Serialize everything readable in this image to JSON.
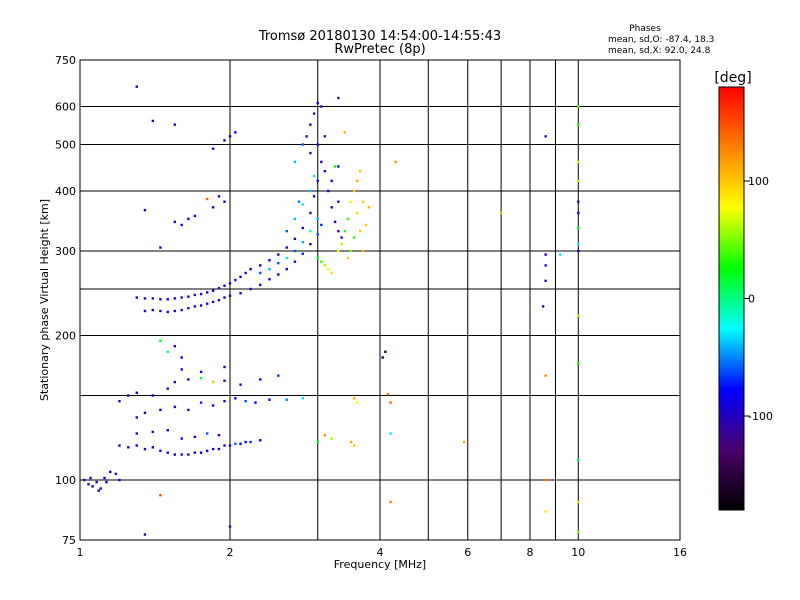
{
  "chart_data": {
    "type": "scatter",
    "title": "Tromsø 20180130 14:54:00-14:55:43",
    "subtitle": "RwPretec (8p)",
    "xlabel": "Frequency [MHz]",
    "ylabel": "Stationary phase Virtual Height [km]",
    "x_scale": "log",
    "y_scale": "log",
    "xlim": [
      1,
      16
    ],
    "ylim": [
      75,
      750
    ],
    "x_ticks": [
      1,
      2,
      4,
      6,
      8,
      10,
      16
    ],
    "y_ticks": [
      75,
      100,
      200,
      300,
      400,
      500,
      600,
      750
    ],
    "x_ticks_unlabeled": [
      3,
      5,
      7,
      9
    ],
    "y_ticks_unlabeled": [
      150,
      250
    ],
    "grid": true,
    "phase_stats": {
      "heading": "Phases",
      "line_o": "mean, sd,O:  -87.4, 18.3",
      "line_x": "mean, sd,X:  92.0, 24.8"
    },
    "colorbar": {
      "label": "[deg]",
      "min": -180,
      "max": 180,
      "ticks": [
        100,
        0,
        -100
      ],
      "colormap": "rainbow",
      "colors": [
        "#000000",
        "#4b006e",
        "#0000ff",
        "#00ffff",
        "#00ff00",
        "#ffff00",
        "#ff8000",
        "#ff0000"
      ]
    },
    "series": [
      {
        "points": [
          [
            1.02,
            100,
            -100
          ],
          [
            1.04,
            98,
            -100
          ],
          [
            1.06,
            97,
            -90
          ],
          [
            1.08,
            99,
            -100
          ],
          [
            1.1,
            96,
            -100
          ],
          [
            1.12,
            101,
            -95
          ],
          [
            1.15,
            104,
            -100
          ],
          [
            1.18,
            103,
            -100
          ],
          [
            1.2,
            100,
            -90
          ],
          [
            1.05,
            101,
            -100
          ],
          [
            1.09,
            95,
            -100
          ],
          [
            1.13,
            99,
            -80
          ],
          [
            1.2,
            118,
            -100
          ],
          [
            1.25,
            117,
            -100
          ],
          [
            1.3,
            118,
            -95
          ],
          [
            1.35,
            116,
            -100
          ],
          [
            1.4,
            117,
            -100
          ],
          [
            1.45,
            115,
            -100
          ],
          [
            1.5,
            114,
            -100
          ],
          [
            1.55,
            113,
            -100
          ],
          [
            1.6,
            113,
            -95
          ],
          [
            1.65,
            113,
            -100
          ],
          [
            1.7,
            114,
            -100
          ],
          [
            1.75,
            114,
            -100
          ],
          [
            1.8,
            115,
            -100
          ],
          [
            1.85,
            116,
            -90
          ],
          [
            1.9,
            116,
            -100
          ],
          [
            1.95,
            118,
            -90
          ],
          [
            2.0,
            118,
            -100
          ],
          [
            2.05,
            119,
            -60
          ],
          [
            2.1,
            119,
            -100
          ],
          [
            2.15,
            120,
            -90
          ],
          [
            2.2,
            120,
            -70
          ],
          [
            2.3,
            121,
            -80
          ],
          [
            1.3,
            125,
            -100
          ],
          [
            1.4,
            126,
            -100
          ],
          [
            1.5,
            127,
            -90
          ],
          [
            1.6,
            122,
            -100
          ],
          [
            1.7,
            123,
            -100
          ],
          [
            1.8,
            125,
            -60
          ],
          [
            1.9,
            124,
            -100
          ],
          [
            1.3,
            135,
            -100
          ],
          [
            1.35,
            138,
            -100
          ],
          [
            1.45,
            140,
            -100
          ],
          [
            1.55,
            142,
            -90
          ],
          [
            1.65,
            140,
            -100
          ],
          [
            1.75,
            145,
            -70
          ],
          [
            1.85,
            143,
            -100
          ],
          [
            1.95,
            146,
            -100
          ],
          [
            2.05,
            148,
            -90
          ],
          [
            2.15,
            146,
            -60
          ],
          [
            2.25,
            145,
            -80
          ],
          [
            2.4,
            147,
            -100
          ],
          [
            2.6,
            147,
            -50
          ],
          [
            2.8,
            148,
            -30
          ],
          [
            1.55,
            160,
            -100
          ],
          [
            1.65,
            162,
            -90
          ],
          [
            1.75,
            163,
            10
          ],
          [
            1.85,
            160,
            100
          ],
          [
            1.95,
            161,
            -100
          ],
          [
            2.1,
            158,
            -100
          ],
          [
            2.3,
            162,
            -90
          ],
          [
            2.5,
            165,
            -70
          ],
          [
            1.6,
            170,
            -100
          ],
          [
            1.75,
            168,
            -100
          ],
          [
            1.95,
            172,
            -100
          ],
          [
            1.2,
            146,
            -100
          ],
          [
            1.25,
            150,
            -100
          ],
          [
            1.3,
            152,
            -100
          ],
          [
            1.4,
            150,
            -90
          ],
          [
            1.5,
            155,
            -100
          ],
          [
            1.5,
            185,
            -10
          ],
          [
            1.45,
            195,
            20
          ],
          [
            1.55,
            190,
            -100
          ],
          [
            1.6,
            180,
            -100
          ],
          [
            1.3,
            240,
            -100
          ],
          [
            1.35,
            239,
            -100
          ],
          [
            1.4,
            239,
            -100
          ],
          [
            1.45,
            238,
            -100
          ],
          [
            1.5,
            238,
            -100
          ],
          [
            1.55,
            239,
            -100
          ],
          [
            1.6,
            240,
            -100
          ],
          [
            1.65,
            241,
            -100
          ],
          [
            1.7,
            243,
            -100
          ],
          [
            1.75,
            244,
            -100
          ],
          [
            1.8,
            246,
            -100
          ],
          [
            1.85,
            248,
            -100
          ],
          [
            1.9,
            251,
            -100
          ],
          [
            1.95,
            254,
            -100
          ],
          [
            2.0,
            257,
            -100
          ],
          [
            2.05,
            261,
            -100
          ],
          [
            2.1,
            265,
            -100
          ],
          [
            2.15,
            270,
            -100
          ],
          [
            2.2,
            275,
            -95
          ],
          [
            2.3,
            280,
            -100
          ],
          [
            2.4,
            287,
            -100
          ],
          [
            2.5,
            295,
            -100
          ],
          [
            2.6,
            305,
            -90
          ],
          [
            2.7,
            318,
            -100
          ],
          [
            2.8,
            335,
            -100
          ],
          [
            2.9,
            360,
            -100
          ],
          [
            2.95,
            390,
            -95
          ],
          [
            3.0,
            420,
            -100
          ],
          [
            1.35,
            225,
            -100
          ],
          [
            1.4,
            226,
            -100
          ],
          [
            1.45,
            225,
            -100
          ],
          [
            1.5,
            224,
            -100
          ],
          [
            1.55,
            225,
            -100
          ],
          [
            1.6,
            226,
            -100
          ],
          [
            1.65,
            228,
            -100
          ],
          [
            1.7,
            230,
            -100
          ],
          [
            1.75,
            231,
            -100
          ],
          [
            1.8,
            233,
            -100
          ],
          [
            1.85,
            235,
            -100
          ],
          [
            1.9,
            237,
            -100
          ],
          [
            1.95,
            240,
            -100
          ],
          [
            2.0,
            242,
            -100
          ],
          [
            2.1,
            245,
            -100
          ],
          [
            2.2,
            250,
            -100
          ],
          [
            2.3,
            255,
            -100
          ],
          [
            2.4,
            262,
            -100
          ],
          [
            2.5,
            268,
            -90
          ],
          [
            2.6,
            275,
            -100
          ],
          [
            2.7,
            285,
            -90
          ],
          [
            2.8,
            296,
            -70
          ],
          [
            2.9,
            310,
            -100
          ],
          [
            3.0,
            325,
            -60
          ],
          [
            3.05,
            340,
            -70
          ],
          [
            2.3,
            270,
            -60
          ],
          [
            2.4,
            275,
            -40
          ],
          [
            2.5,
            283,
            -60
          ],
          [
            2.6,
            290,
            -30
          ],
          [
            2.7,
            300,
            -60
          ],
          [
            2.8,
            313,
            -40
          ],
          [
            2.9,
            330,
            -20
          ],
          [
            3.0,
            350,
            -40
          ],
          [
            2.6,
            330,
            -60
          ],
          [
            2.7,
            350,
            -40
          ],
          [
            2.8,
            375,
            -30
          ],
          [
            2.9,
            400,
            -40
          ],
          [
            2.95,
            430,
            -30
          ],
          [
            2.7,
            460,
            -40
          ],
          [
            2.8,
            500,
            -60
          ],
          [
            2.75,
            380,
            -50
          ],
          [
            2.85,
            520,
            -100
          ],
          [
            2.9,
            550,
            -100
          ],
          [
            2.95,
            580,
            -100
          ],
          [
            3.0,
            610,
            -100
          ],
          [
            3.05,
            600,
            -100
          ],
          [
            2.9,
            480,
            -100
          ],
          [
            3.0,
            500,
            -90
          ],
          [
            3.05,
            460,
            -100
          ],
          [
            3.1,
            440,
            -100
          ],
          [
            3.15,
            400,
            -100
          ],
          [
            3.2,
            370,
            -100
          ],
          [
            3.25,
            345,
            -100
          ],
          [
            3.3,
            330,
            -100
          ],
          [
            3.35,
            320,
            -100
          ],
          [
            3.2,
            420,
            -100
          ],
          [
            3.3,
            380,
            -100
          ],
          [
            3.1,
            520,
            -100
          ],
          [
            3.3,
            450,
            -100
          ],
          [
            3.0,
            290,
            20
          ],
          [
            3.05,
            285,
            40
          ],
          [
            3.1,
            280,
            60
          ],
          [
            3.15,
            275,
            80
          ],
          [
            3.2,
            270,
            90
          ],
          [
            3.3,
            300,
            70
          ],
          [
            3.35,
            310,
            60
          ],
          [
            3.4,
            330,
            30
          ],
          [
            3.45,
            350,
            40
          ],
          [
            3.5,
            380,
            80
          ],
          [
            3.55,
            400,
            100
          ],
          [
            3.6,
            420,
            110
          ],
          [
            3.65,
            440,
            100
          ],
          [
            3.6,
            360,
            90
          ],
          [
            3.65,
            330,
            100
          ],
          [
            3.7,
            300,
            110
          ],
          [
            3.75,
            340,
            100
          ],
          [
            3.7,
            380,
            100
          ],
          [
            3.8,
            370,
            110
          ],
          [
            3.5,
            300,
            50
          ],
          [
            3.55,
            320,
            30
          ],
          [
            3.45,
            290,
            100
          ],
          [
            3.55,
            148,
            110
          ],
          [
            3.6,
            145,
            80
          ],
          [
            3.5,
            120,
            110
          ],
          [
            3.55,
            118,
            100
          ],
          [
            3.2,
            122,
            60
          ],
          [
            3.1,
            124,
            120
          ],
          [
            3.0,
            120,
            20
          ],
          [
            4.15,
            151,
            130
          ],
          [
            4.2,
            145,
            140
          ],
          [
            4.1,
            185,
            -150
          ],
          [
            4.05,
            180,
            -150
          ],
          [
            4.2,
            90,
            130
          ],
          [
            4.2,
            125,
            -30
          ],
          [
            4.3,
            460,
            120
          ],
          [
            3.3,
            625,
            -130
          ],
          [
            3.4,
            530,
            110
          ],
          [
            3.25,
            450,
            30
          ],
          [
            1.4,
            560,
            -100
          ],
          [
            1.55,
            550,
            -100
          ],
          [
            1.3,
            660,
            -100
          ],
          [
            1.65,
            350,
            -100
          ],
          [
            1.6,
            340,
            -100
          ],
          [
            1.7,
            355,
            -100
          ],
          [
            1.55,
            345,
            -100
          ],
          [
            1.8,
            385,
            140
          ],
          [
            1.85,
            370,
            -100
          ],
          [
            1.9,
            390,
            -110
          ],
          [
            1.95,
            380,
            -100
          ],
          [
            1.85,
            490,
            -110
          ],
          [
            1.95,
            510,
            -110
          ],
          [
            2.0,
            520,
            -100
          ],
          [
            2.05,
            530,
            -80
          ],
          [
            1.45,
            305,
            -100
          ],
          [
            1.35,
            365,
            -100
          ],
          [
            8.6,
            260,
            -100
          ],
          [
            8.6,
            280,
            -100
          ],
          [
            8.6,
            295,
            -100
          ],
          [
            8.5,
            230,
            -110
          ],
          [
            8.6,
            520,
            -110
          ],
          [
            8.6,
            165,
            120
          ],
          [
            8.6,
            100,
            130
          ],
          [
            8.6,
            86,
            90
          ],
          [
            10.0,
            380,
            -120
          ],
          [
            10.0,
            360,
            -80
          ],
          [
            10.0,
            335,
            20
          ],
          [
            10.0,
            310,
            -20
          ],
          [
            10.0,
            300,
            -100
          ],
          [
            10.0,
            420,
            60
          ],
          [
            10.0,
            460,
            70
          ],
          [
            10.0,
            550,
            30
          ],
          [
            10.0,
            600,
            40
          ],
          [
            10.0,
            220,
            60
          ],
          [
            10.0,
            175,
            30
          ],
          [
            10.0,
            110,
            10
          ],
          [
            10.0,
            90,
            90
          ],
          [
            10.0,
            78,
            50
          ],
          [
            7.0,
            360,
            60
          ],
          [
            9.2,
            295,
            -30
          ],
          [
            5.9,
            120,
            110
          ],
          [
            2.0,
            80,
            -110
          ],
          [
            1.35,
            77,
            -100
          ],
          [
            1.45,
            93,
            150
          ]
        ]
      }
    ]
  }
}
